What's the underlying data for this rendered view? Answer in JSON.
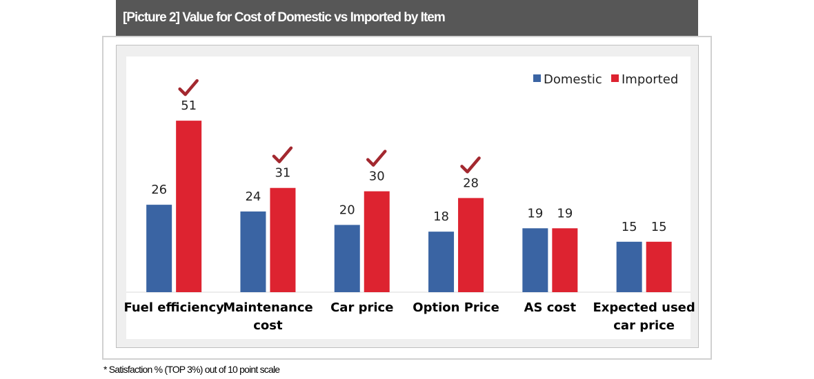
{
  "title": "[Picture 2] Value for Cost of Domestic vs Imported by Item",
  "footnote": "* Satisfaction % (TOP 3%) out of 10 point scale",
  "chart_data": {
    "type": "bar",
    "categories": [
      [
        "Fuel efficiency"
      ],
      [
        "Maintenance",
        "cost"
      ],
      [
        "Car price"
      ],
      [
        "Option Price"
      ],
      [
        "AS cost"
      ],
      [
        "Expected used",
        "car price"
      ]
    ],
    "series": [
      {
        "name": "Domestic",
        "color": "#3a64a3",
        "values": [
          26,
          24,
          20,
          18,
          19,
          15
        ]
      },
      {
        "name": "Imported",
        "color": "#dd2330",
        "values": [
          51,
          31,
          30,
          28,
          19,
          15
        ]
      }
    ],
    "ylim": [
      0,
      60
    ],
    "grid": false,
    "legend": "top-right",
    "data_labels": true,
    "highlight": {
      "icon": "checkmark-icon",
      "color": "#a3282f",
      "categories": [
        0,
        1,
        2,
        3
      ],
      "series": "Imported"
    }
  }
}
